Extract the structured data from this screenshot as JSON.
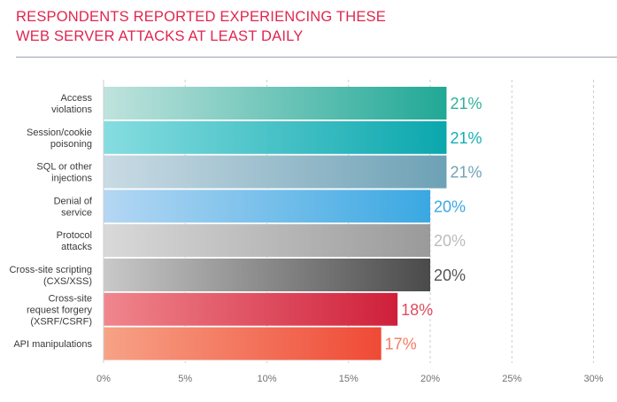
{
  "chart_data": {
    "type": "bar",
    "orientation": "horizontal",
    "title_lines": [
      "RESPONDENTS REPORTED EXPERIENCING THESE",
      "WEB SERVER ATTACKS AT LEAST DAILY"
    ],
    "categories": [
      [
        "Access",
        "violations"
      ],
      [
        "Session/cookie",
        "poisoning"
      ],
      [
        "SQL or other",
        "injections"
      ],
      [
        "Denial of",
        "service"
      ],
      [
        "Protocol",
        "attacks"
      ],
      [
        "Cross-site scripting",
        "(CXS/XSS)"
      ],
      [
        "Cross-site",
        "request forgery",
        "(XSRF/CSRF)"
      ],
      [
        "API manipulations"
      ]
    ],
    "values": [
      21,
      21,
      21,
      20,
      20,
      20,
      18,
      17
    ],
    "value_labels": [
      "21%",
      "21%",
      "21%",
      "20%",
      "20%",
      "20%",
      "18%",
      "17%"
    ],
    "xlim": [
      0,
      30
    ],
    "xticks": [
      0,
      5,
      10,
      15,
      20,
      25,
      30
    ],
    "xtick_labels": [
      "0%",
      "5%",
      "10%",
      "15%",
      "20%",
      "25%",
      "30%"
    ],
    "grid": true,
    "bar_gradients": [
      [
        "#bfe3dd",
        "#21a896"
      ],
      [
        "#86dde0",
        "#0aa7ad"
      ],
      [
        "#c9dbe4",
        "#6da1b5"
      ],
      [
        "#b4d7f3",
        "#3aa8e2"
      ],
      [
        "#d9d9d9",
        "#9a9a9a"
      ],
      [
        "#c9c9c9",
        "#4a4a4a"
      ],
      [
        "#f0868d",
        "#cf1f3a"
      ],
      [
        "#f7a286",
        "#ef4a36"
      ]
    ],
    "value_label_colors": [
      "#2fb09e",
      "#14aeb3",
      "#6fa3b6",
      "#3aa8e2",
      "#bcbcbc",
      "#555555",
      "#e24b5e",
      "#f07c66"
    ]
  }
}
